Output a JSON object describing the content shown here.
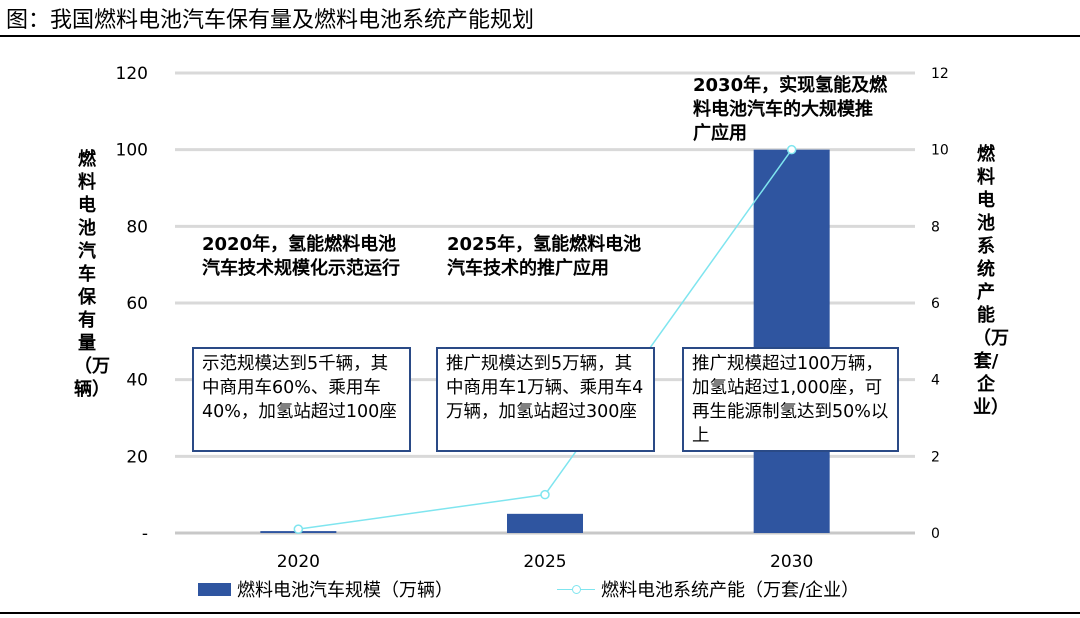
{
  "figure_title": "图：我国燃料电池汽车保有量及燃料电池系统产能规划",
  "chart_data": {
    "type": "bar",
    "categories": [
      "2020",
      "2025",
      "2030"
    ],
    "series": [
      {
        "name": "燃料电池汽车规模（万辆）",
        "type": "bar",
        "axis": "left",
        "color": "#2f55a0",
        "values": [
          0.5,
          5,
          100
        ]
      },
      {
        "name": "燃料电池系统产能（万套/企业）",
        "type": "line",
        "axis": "right",
        "color": "#7fe5ef",
        "values": [
          0.1,
          1,
          10
        ]
      }
    ],
    "y_left": {
      "label": "燃料电池汽车保有量（万辆）",
      "ylim": [
        0,
        120
      ],
      "ticks": [
        "-",
        "20",
        "40",
        "60",
        "80",
        "100",
        "120"
      ]
    },
    "y_right": {
      "label": "燃料电池系统产能（万套/企业）",
      "ylim": [
        0,
        12
      ],
      "ticks": [
        "0",
        "2",
        "4",
        "6",
        "8",
        "10",
        "12"
      ]
    },
    "grid": true,
    "legend": "bottom",
    "annotations": {
      "heading_2020": "2020年，氢能燃料电池汽车技术规模化示范运行",
      "heading_2025": "2025年，氢能燃料电池汽车技术的推广应用",
      "heading_2030": "2030年，实现氢能及燃料电池汽车的大规模推广应用",
      "box_2020": "示范规模达到5千辆，其中商用车60%、乘用车40%，加氢站超过100座",
      "box_2025": "推广规模达到5万辆，其中商用车1万辆、乘用车4万辆，加氢站超过300座",
      "box_2030": "推广规模超过100万辆，加氢站超过1,000座，可再生能源制氢达到50%以上"
    }
  }
}
